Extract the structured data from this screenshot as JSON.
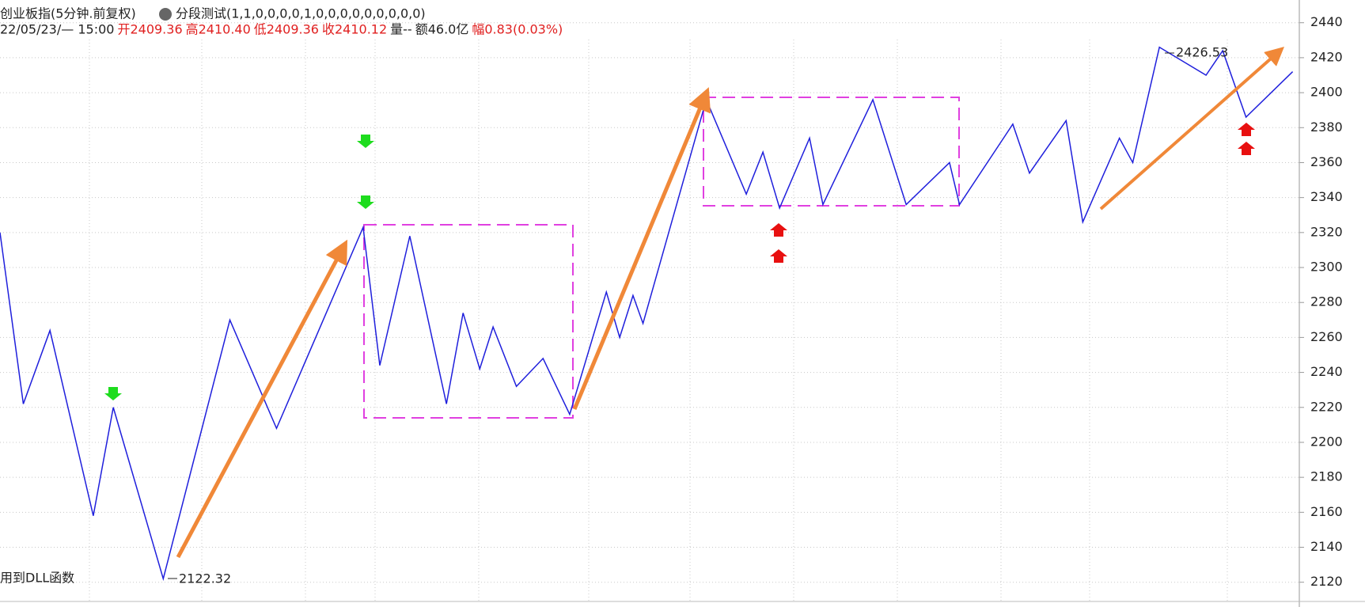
{
  "header": {
    "title": "创业板指(5分钟.前复权)",
    "indicator": "分段测试(1,1,0,0,0,0,1,0,0,0,0,0,0,0,0,0)",
    "date": "22/05/23/— 15:00",
    "open": "开2409.36",
    "high": "高2410.40",
    "low": "低2409.36",
    "close": "收2410.12",
    "volume": "量--",
    "amount": "额46.0亿",
    "change": "幅0.83(0.03%)"
  },
  "footer": "用到DLL函数",
  "chart_data": {
    "type": "line",
    "x": [
      0,
      7,
      15,
      28,
      34,
      49,
      69,
      83,
      109,
      114,
      123,
      134,
      139,
      144,
      148,
      155,
      163,
      171,
      182,
      186,
      190,
      193,
      212,
      224,
      229,
      234,
      243,
      247,
      262,
      272,
      285,
      288,
      304,
      309,
      320,
      325,
      336,
      340,
      348,
      362,
      367,
      374,
      388
    ],
    "series": [
      {
        "name": "分段",
        "color": "#1f1fdc",
        "values": [
          2320,
          2222,
          2264,
          2158,
          2220,
          2122,
          2270,
          2208,
          2323,
          2244,
          2318,
          2222,
          2274,
          2242,
          2266,
          2232,
          2248,
          2216,
          2286,
          2260,
          2284,
          2268,
          2396,
          2342,
          2366,
          2334,
          2374,
          2336,
          2396,
          2336,
          2360,
          2336,
          2382,
          2354,
          2384,
          2326,
          2374,
          2360,
          2426,
          2410,
          2424,
          2386,
          2412
        ]
      }
    ],
    "xlim": [
      0,
      390
    ],
    "ylim": [
      2109,
      2453
    ],
    "yticks": [
      2120,
      2140,
      2160,
      2180,
      2200,
      2220,
      2240,
      2260,
      2280,
      2300,
      2320,
      2340,
      2360,
      2380,
      2400,
      2420,
      2440
    ],
    "grid": true,
    "annotations": [
      "2122.32",
      "2426.53"
    ]
  }
}
